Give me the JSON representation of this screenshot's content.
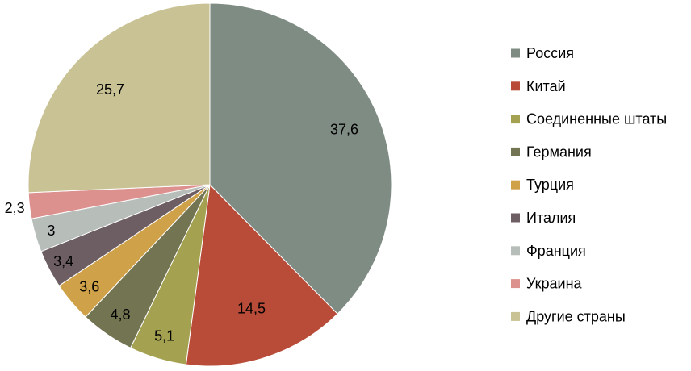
{
  "chart_data": {
    "type": "pie",
    "title": "",
    "start": "top-clockwise",
    "legend_position": "right",
    "categories": [
      "Россия",
      "Китай",
      "Соединенные штаты",
      "Германия",
      "Турция",
      "Италия",
      "Франция",
      "Украина",
      "Другие страны"
    ],
    "values": [
      37.6,
      14.5,
      5.1,
      4.8,
      3.6,
      3.4,
      3,
      2.3,
      25.7
    ],
    "data_labels": [
      "37,6",
      "14,5",
      "5,1",
      "4,8",
      "3,6",
      "3,4",
      "3",
      "2,3",
      "25,7"
    ],
    "colors": [
      "#7F8C84",
      "#B84C38",
      "#A4A251",
      "#737452",
      "#CFA24A",
      "#6D5E63",
      "#B7BEBA",
      "#DC918E",
      "#C9C295"
    ]
  }
}
